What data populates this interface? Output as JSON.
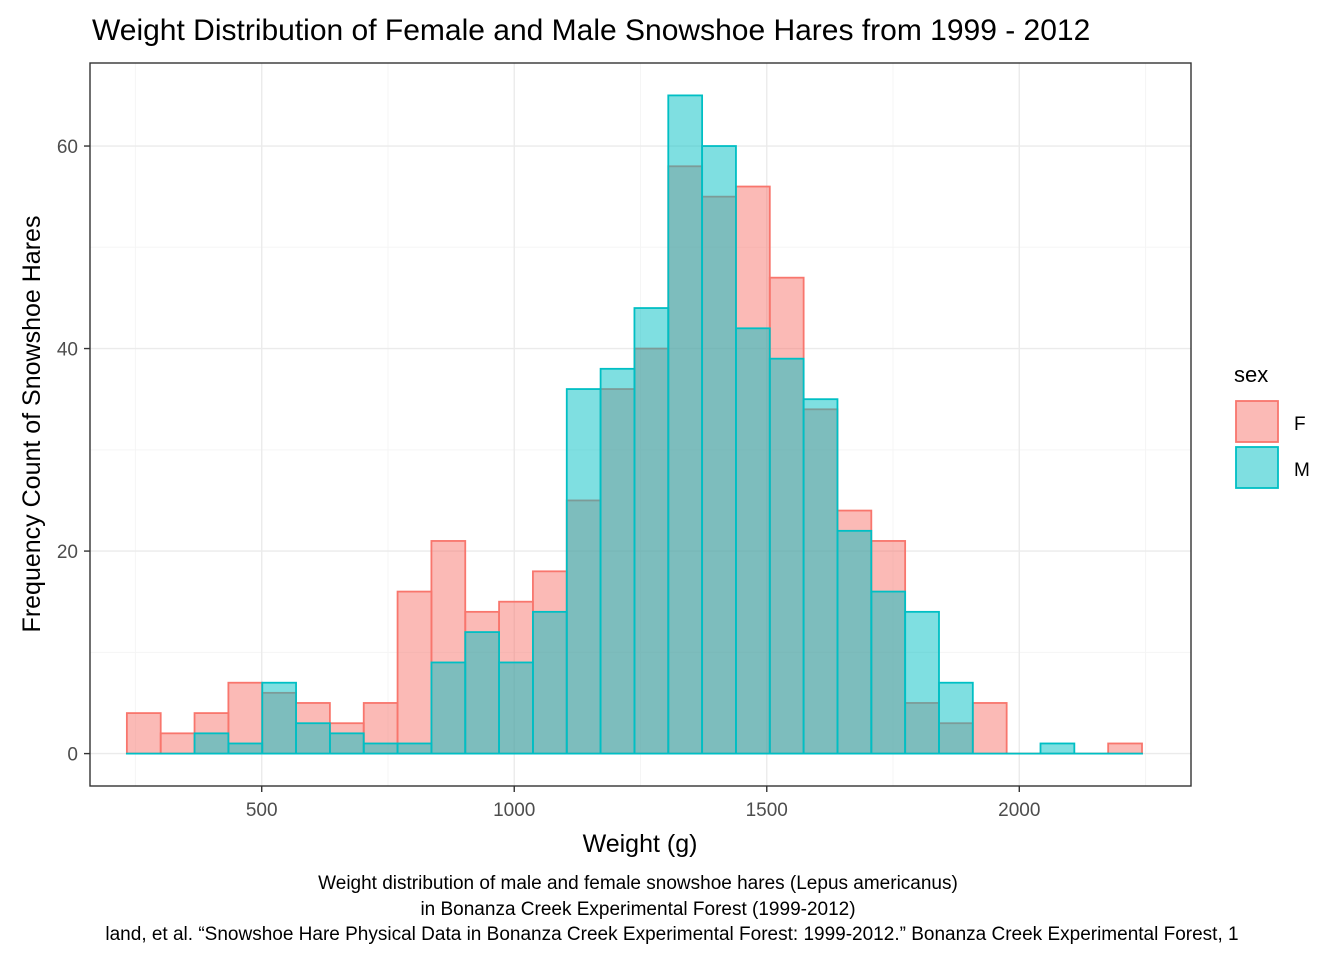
{
  "chart_data": {
    "type": "histogram",
    "title": "Weight Distribution of Female and Male Snowshoe Hares from 1999 - 2012",
    "xlabel": "Weight (g)",
    "ylabel": "Frequency Count of Snowshoe Hares",
    "xlim": [
      160,
      2340
    ],
    "ylim": [
      -3.2,
      68.2
    ],
    "x_ticks": [
      500,
      1000,
      1500,
      2000
    ],
    "y_ticks": [
      0,
      20,
      40,
      60
    ],
    "grid": true,
    "legend": {
      "title": "sex",
      "position": "right",
      "entries": [
        {
          "label": "F",
          "fill": "#F8766D",
          "stroke": "#F8766D"
        },
        {
          "label": "M",
          "fill": "#00BFC4",
          "stroke": "#00BFC4"
        }
      ]
    },
    "bins": {
      "start": 233,
      "width": 67,
      "centers": [
        266.5,
        333.5,
        400.5,
        467.5,
        534.5,
        601.5,
        668.5,
        735.5,
        802.5,
        869.5,
        936.5,
        1003.5,
        1070.5,
        1137.5,
        1204.5,
        1271.5,
        1338.5,
        1405.5,
        1472.5,
        1539.5,
        1606.5,
        1673.5,
        1740.5,
        1807.5,
        1874.5,
        1941.5,
        2008.5,
        2075.5,
        2142.5,
        2209.5
      ]
    },
    "series": [
      {
        "name": "F",
        "color": "#F8766D",
        "values": [
          4,
          2,
          4,
          7,
          6,
          5,
          3,
          5,
          16,
          21,
          14,
          15,
          18,
          25,
          36,
          40,
          58,
          55,
          56,
          47,
          34,
          24,
          21,
          5,
          3,
          5,
          0,
          0,
          0,
          1
        ]
      },
      {
        "name": "M",
        "color": "#00BFC4",
        "values": [
          0,
          0,
          2,
          1,
          7,
          3,
          2,
          1,
          1,
          9,
          12,
          9,
          14,
          36,
          38,
          44,
          65,
          60,
          42,
          39,
          35,
          22,
          16,
          14,
          7,
          0,
          0,
          1,
          0,
          0
        ]
      }
    ],
    "caption": [
      "Weight distribution of male and female snowshoe hares (Lepus americanus)",
      "in Bonanza Creek Experimental Forest (1999-2012)",
      "land, et al. “Snowshoe Hare Physical Data in Bonanza Creek Experimental Forest: 1999-2012.” Bonanza Creek Experimental Forest, 1"
    ]
  }
}
